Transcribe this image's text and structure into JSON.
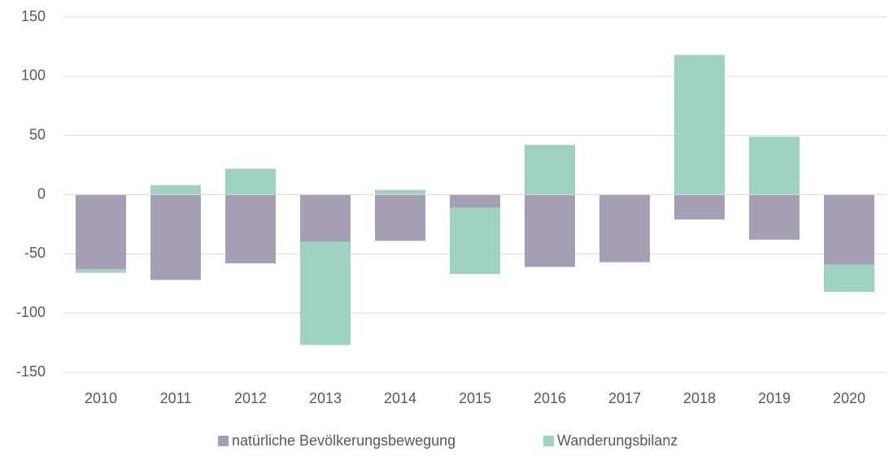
{
  "chart_data": {
    "type": "stacked_bar",
    "categories": [
      "2010",
      "2011",
      "2012",
      "2013",
      "2014",
      "2015",
      "2016",
      "2017",
      "2018",
      "2019",
      "2020"
    ],
    "series": [
      {
        "name": "natürliche Bevölkerungsbewegung",
        "color": "#a59fb6",
        "values": [
          -63,
          -72,
          -58,
          -40,
          -39,
          -11,
          -61,
          -57,
          -21,
          -38,
          -59
        ]
      },
      {
        "name": "Wanderungsbilanz",
        "color": "#9dd3c0",
        "values": [
          -3,
          8,
          22,
          -87,
          4,
          -56,
          42,
          0,
          118,
          49,
          -23
        ]
      }
    ],
    "ylim": [
      -150,
      150
    ],
    "yticks": [
      -150,
      -100,
      -50,
      0,
      50,
      100,
      150
    ],
    "grid": true,
    "legend": "bottom"
  }
}
